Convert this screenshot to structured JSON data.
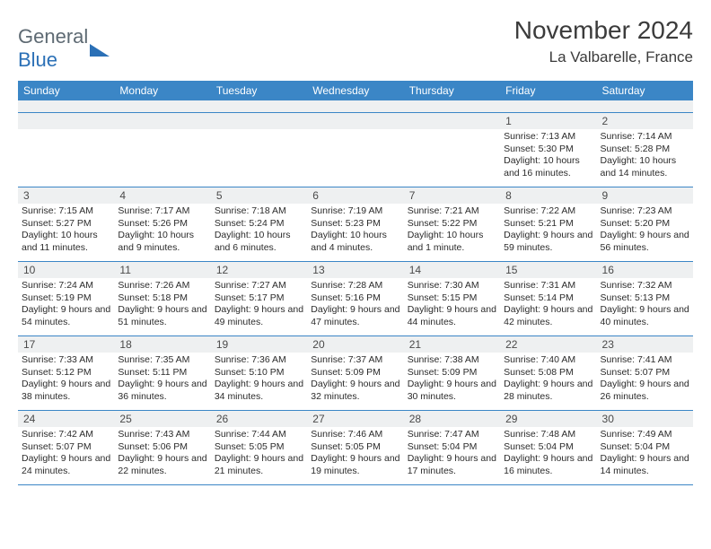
{
  "branding": {
    "part1": "General",
    "part2": "Blue"
  },
  "header": {
    "title": "November 2024",
    "location": "La Valbarelle, France"
  },
  "colors": {
    "accent": "#3b86c6",
    "header_band": "#eef0f1",
    "text": "#2b2b2b",
    "title_text": "#3b3b3b",
    "logo_gray": "#5e6a73",
    "logo_blue": "#2b70b6",
    "background": "#ffffff"
  },
  "typography": {
    "title_fontsize": 28,
    "location_fontsize": 17,
    "dow_fontsize": 12,
    "daynum_fontsize": 12,
    "body_fontsize": 10.5
  },
  "dow": [
    "Sunday",
    "Monday",
    "Tuesday",
    "Wednesday",
    "Thursday",
    "Friday",
    "Saturday"
  ],
  "weeks": [
    [
      {
        "n": "",
        "sr": "",
        "ss": "",
        "dl": ""
      },
      {
        "n": "",
        "sr": "",
        "ss": "",
        "dl": ""
      },
      {
        "n": "",
        "sr": "",
        "ss": "",
        "dl": ""
      },
      {
        "n": "",
        "sr": "",
        "ss": "",
        "dl": ""
      },
      {
        "n": "",
        "sr": "",
        "ss": "",
        "dl": ""
      },
      {
        "n": "1",
        "sr": "Sunrise: 7:13 AM",
        "ss": "Sunset: 5:30 PM",
        "dl": "Daylight: 10 hours and 16 minutes."
      },
      {
        "n": "2",
        "sr": "Sunrise: 7:14 AM",
        "ss": "Sunset: 5:28 PM",
        "dl": "Daylight: 10 hours and 14 minutes."
      }
    ],
    [
      {
        "n": "3",
        "sr": "Sunrise: 7:15 AM",
        "ss": "Sunset: 5:27 PM",
        "dl": "Daylight: 10 hours and 11 minutes."
      },
      {
        "n": "4",
        "sr": "Sunrise: 7:17 AM",
        "ss": "Sunset: 5:26 PM",
        "dl": "Daylight: 10 hours and 9 minutes."
      },
      {
        "n": "5",
        "sr": "Sunrise: 7:18 AM",
        "ss": "Sunset: 5:24 PM",
        "dl": "Daylight: 10 hours and 6 minutes."
      },
      {
        "n": "6",
        "sr": "Sunrise: 7:19 AM",
        "ss": "Sunset: 5:23 PM",
        "dl": "Daylight: 10 hours and 4 minutes."
      },
      {
        "n": "7",
        "sr": "Sunrise: 7:21 AM",
        "ss": "Sunset: 5:22 PM",
        "dl": "Daylight: 10 hours and 1 minute."
      },
      {
        "n": "8",
        "sr": "Sunrise: 7:22 AM",
        "ss": "Sunset: 5:21 PM",
        "dl": "Daylight: 9 hours and 59 minutes."
      },
      {
        "n": "9",
        "sr": "Sunrise: 7:23 AM",
        "ss": "Sunset: 5:20 PM",
        "dl": "Daylight: 9 hours and 56 minutes."
      }
    ],
    [
      {
        "n": "10",
        "sr": "Sunrise: 7:24 AM",
        "ss": "Sunset: 5:19 PM",
        "dl": "Daylight: 9 hours and 54 minutes."
      },
      {
        "n": "11",
        "sr": "Sunrise: 7:26 AM",
        "ss": "Sunset: 5:18 PM",
        "dl": "Daylight: 9 hours and 51 minutes."
      },
      {
        "n": "12",
        "sr": "Sunrise: 7:27 AM",
        "ss": "Sunset: 5:17 PM",
        "dl": "Daylight: 9 hours and 49 minutes."
      },
      {
        "n": "13",
        "sr": "Sunrise: 7:28 AM",
        "ss": "Sunset: 5:16 PM",
        "dl": "Daylight: 9 hours and 47 minutes."
      },
      {
        "n": "14",
        "sr": "Sunrise: 7:30 AM",
        "ss": "Sunset: 5:15 PM",
        "dl": "Daylight: 9 hours and 44 minutes."
      },
      {
        "n": "15",
        "sr": "Sunrise: 7:31 AM",
        "ss": "Sunset: 5:14 PM",
        "dl": "Daylight: 9 hours and 42 minutes."
      },
      {
        "n": "16",
        "sr": "Sunrise: 7:32 AM",
        "ss": "Sunset: 5:13 PM",
        "dl": "Daylight: 9 hours and 40 minutes."
      }
    ],
    [
      {
        "n": "17",
        "sr": "Sunrise: 7:33 AM",
        "ss": "Sunset: 5:12 PM",
        "dl": "Daylight: 9 hours and 38 minutes."
      },
      {
        "n": "18",
        "sr": "Sunrise: 7:35 AM",
        "ss": "Sunset: 5:11 PM",
        "dl": "Daylight: 9 hours and 36 minutes."
      },
      {
        "n": "19",
        "sr": "Sunrise: 7:36 AM",
        "ss": "Sunset: 5:10 PM",
        "dl": "Daylight: 9 hours and 34 minutes."
      },
      {
        "n": "20",
        "sr": "Sunrise: 7:37 AM",
        "ss": "Sunset: 5:09 PM",
        "dl": "Daylight: 9 hours and 32 minutes."
      },
      {
        "n": "21",
        "sr": "Sunrise: 7:38 AM",
        "ss": "Sunset: 5:09 PM",
        "dl": "Daylight: 9 hours and 30 minutes."
      },
      {
        "n": "22",
        "sr": "Sunrise: 7:40 AM",
        "ss": "Sunset: 5:08 PM",
        "dl": "Daylight: 9 hours and 28 minutes."
      },
      {
        "n": "23",
        "sr": "Sunrise: 7:41 AM",
        "ss": "Sunset: 5:07 PM",
        "dl": "Daylight: 9 hours and 26 minutes."
      }
    ],
    [
      {
        "n": "24",
        "sr": "Sunrise: 7:42 AM",
        "ss": "Sunset: 5:07 PM",
        "dl": "Daylight: 9 hours and 24 minutes."
      },
      {
        "n": "25",
        "sr": "Sunrise: 7:43 AM",
        "ss": "Sunset: 5:06 PM",
        "dl": "Daylight: 9 hours and 22 minutes."
      },
      {
        "n": "26",
        "sr": "Sunrise: 7:44 AM",
        "ss": "Sunset: 5:05 PM",
        "dl": "Daylight: 9 hours and 21 minutes."
      },
      {
        "n": "27",
        "sr": "Sunrise: 7:46 AM",
        "ss": "Sunset: 5:05 PM",
        "dl": "Daylight: 9 hours and 19 minutes."
      },
      {
        "n": "28",
        "sr": "Sunrise: 7:47 AM",
        "ss": "Sunset: 5:04 PM",
        "dl": "Daylight: 9 hours and 17 minutes."
      },
      {
        "n": "29",
        "sr": "Sunrise: 7:48 AM",
        "ss": "Sunset: 5:04 PM",
        "dl": "Daylight: 9 hours and 16 minutes."
      },
      {
        "n": "30",
        "sr": "Sunrise: 7:49 AM",
        "ss": "Sunset: 5:04 PM",
        "dl": "Daylight: 9 hours and 14 minutes."
      }
    ]
  ]
}
